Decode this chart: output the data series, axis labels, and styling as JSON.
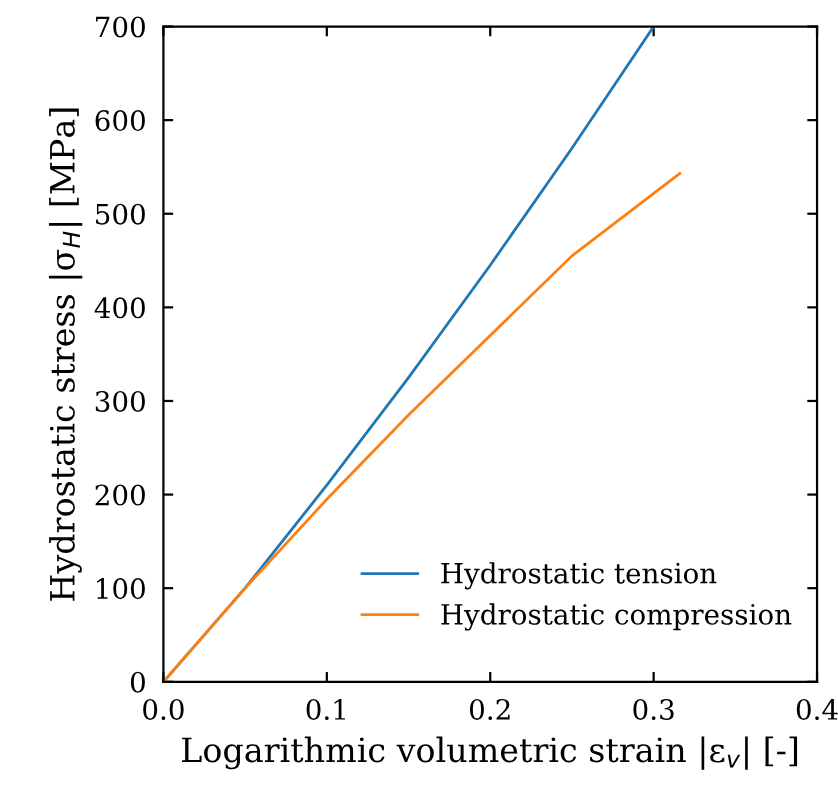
{
  "chart_data": {
    "type": "line",
    "xlabel": "Logarithmic volumetric strain |ε$_{v}$| [-]",
    "ylabel": "Hydrostatic stress |σ$_{H}$| [MPa]",
    "xlim": [
      0,
      0.4
    ],
    "ylim": [
      0,
      700
    ],
    "xticks": [
      {
        "value": 0,
        "label": "0.0"
      },
      0.1,
      0.2,
      0.3,
      0.4
    ],
    "yticks": [
      0,
      100,
      200,
      300,
      400,
      500,
      600,
      700
    ],
    "legend": "bottom right",
    "grid": false,
    "series": [
      {
        "name": "Hydrostatic tension",
        "color": "#1f77b4",
        "x": [
          0,
          0.05,
          0.1,
          0.15,
          0.2,
          0.25,
          0.3
        ],
        "values": [
          0,
          100,
          210,
          325,
          445,
          570,
          700
        ]
      },
      {
        "name": "Hydrostatic compression",
        "color": "#ff7f0e",
        "x": [
          0,
          0.05,
          0.1,
          0.15,
          0.2,
          0.25,
          0.316
        ],
        "values": [
          0,
          100,
          195,
          285,
          370,
          455,
          543
        ]
      }
    ]
  }
}
